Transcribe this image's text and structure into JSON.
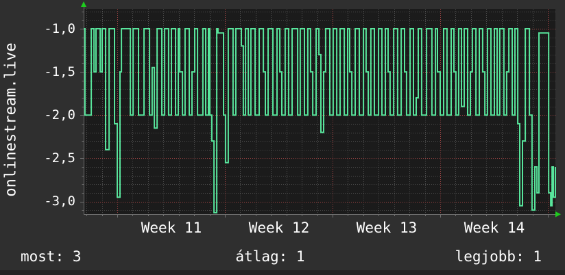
{
  "colors": {
    "background": "#2f2f2f",
    "plot_background": "#1b1b1b",
    "text": "#ffffff",
    "axis": "#707070",
    "arrow_green": "#1ecc1e",
    "line_green": "#58e59c",
    "grid_minor": "#4e4e4e",
    "grid_major_red": "#a34545",
    "footer_strip": "#242424"
  },
  "legend": {
    "current": "most: 3",
    "average": "átlag: 1",
    "best": "legjobb: 1"
  },
  "chart_data": {
    "type": "line",
    "style": "step",
    "title": "onlinestream.live",
    "ylabel": "onlinestream.live",
    "xlabel": "",
    "legend_position": "bottom",
    "grid": {
      "on": true,
      "minor_color": "#4e4e4e",
      "major_color": "#a34545"
    },
    "x_axis": {
      "unit": "days (weekly major grid)",
      "tick_labels": [
        "Week 11",
        "Week 12",
        "Week 13",
        "Week 14"
      ],
      "tick_label_positions_days": [
        3.5,
        10.5,
        17.5,
        24.5
      ],
      "major_gridlines_days": [
        0,
        7,
        14,
        21,
        28
      ],
      "minor_gridline_step_days": 1,
      "range_days": [
        -2.19,
        28.5
      ]
    },
    "y_axis": {
      "tick_labels": [
        "-1,0",
        "-1,5",
        "-2,0",
        "-2,5",
        "-3,0"
      ],
      "tick_values": [
        -1,
        -1.5,
        -2,
        -2.5,
        -3
      ],
      "major_step": 0.5,
      "minor_step": 0.1,
      "range": [
        -3.15,
        -0.77
      ]
    },
    "series": [
      {
        "name": "onlinestream.live",
        "color": "#58e59c",
        "points": [
          [
            -2.18,
            -1
          ],
          [
            -2.1,
            -2
          ],
          [
            -1.69,
            -1
          ],
          [
            -1.51,
            -1.5
          ],
          [
            -1.38,
            -1
          ],
          [
            -1.11,
            -1.5
          ],
          [
            -0.98,
            -1
          ],
          [
            -0.76,
            -2.4
          ],
          [
            -0.53,
            -1
          ],
          [
            -0.18,
            -2.1
          ],
          [
            0.0,
            -2.95
          ],
          [
            0.18,
            -1.5
          ],
          [
            0.27,
            -1
          ],
          [
            0.85,
            -2
          ],
          [
            1.03,
            -1
          ],
          [
            1.38,
            -2
          ],
          [
            1.74,
            -1
          ],
          [
            2.1,
            -2
          ],
          [
            2.27,
            -1.45
          ],
          [
            2.41,
            -2.15
          ],
          [
            2.59,
            -1
          ],
          [
            2.9,
            -2
          ],
          [
            3.08,
            -1
          ],
          [
            3.34,
            -2
          ],
          [
            3.52,
            -1
          ],
          [
            3.79,
            -2
          ],
          [
            3.97,
            -1
          ],
          [
            4.06,
            -1.5
          ],
          [
            4.24,
            -2
          ],
          [
            4.41,
            -1
          ],
          [
            4.68,
            -2
          ],
          [
            4.86,
            -1.5
          ],
          [
            5.04,
            -1
          ],
          [
            5.22,
            -2
          ],
          [
            5.57,
            -1
          ],
          [
            5.75,
            -2
          ],
          [
            5.93,
            -1
          ],
          [
            6.02,
            -2
          ],
          [
            6.15,
            -2.3
          ],
          [
            6.29,
            -3.13
          ],
          [
            6.47,
            -1
          ],
          [
            6.55,
            -1.05
          ],
          [
            6.91,
            -2
          ],
          [
            7.04,
            -2.55
          ],
          [
            7.22,
            -1
          ],
          [
            7.53,
            -2
          ],
          [
            7.71,
            -1
          ],
          [
            8.07,
            -1.2
          ],
          [
            8.2,
            -2
          ],
          [
            8.34,
            -1
          ],
          [
            8.52,
            -2
          ],
          [
            8.69,
            -1
          ],
          [
            8.96,
            -2
          ],
          [
            9.23,
            -1
          ],
          [
            9.5,
            -1.5
          ],
          [
            9.63,
            -2
          ],
          [
            9.81,
            -1
          ],
          [
            10.12,
            -2
          ],
          [
            10.39,
            -1
          ],
          [
            10.57,
            -1.5
          ],
          [
            10.7,
            -2
          ],
          [
            10.92,
            -1
          ],
          [
            11.14,
            -2
          ],
          [
            11.37,
            -1
          ],
          [
            11.73,
            -2
          ],
          [
            11.9,
            -1
          ],
          [
            12.17,
            -2
          ],
          [
            12.39,
            -1
          ],
          [
            12.57,
            -1.5
          ],
          [
            12.71,
            -2
          ],
          [
            12.93,
            -1
          ],
          [
            13.11,
            -1.3
          ],
          [
            13.24,
            -2.2
          ],
          [
            13.42,
            -1.5
          ],
          [
            13.55,
            -1
          ],
          [
            13.82,
            -2
          ],
          [
            14.04,
            -1
          ],
          [
            14.27,
            -2
          ],
          [
            14.49,
            -1
          ],
          [
            14.76,
            -2
          ],
          [
            14.98,
            -1
          ],
          [
            15.11,
            -1.5
          ],
          [
            15.25,
            -2
          ],
          [
            15.47,
            -1
          ],
          [
            15.74,
            -2
          ],
          [
            16.01,
            -1
          ],
          [
            16.18,
            -1.5
          ],
          [
            16.32,
            -2
          ],
          [
            16.49,
            -1
          ],
          [
            16.72,
            -2
          ],
          [
            16.99,
            -1
          ],
          [
            17.21,
            -2
          ],
          [
            17.43,
            -1
          ],
          [
            17.61,
            -1.5
          ],
          [
            17.74,
            -2
          ],
          [
            17.97,
            -1
          ],
          [
            18.23,
            -2
          ],
          [
            18.46,
            -1
          ],
          [
            18.68,
            -1.5
          ],
          [
            18.81,
            -2
          ],
          [
            19.04,
            -1
          ],
          [
            19.26,
            -2
          ],
          [
            19.44,
            -1.8
          ],
          [
            19.57,
            -1
          ],
          [
            19.79,
            -2
          ],
          [
            20.11,
            -1
          ],
          [
            20.46,
            -2
          ],
          [
            20.69,
            -1
          ],
          [
            20.82,
            -1.5
          ],
          [
            21.0,
            -2
          ],
          [
            21.22,
            -1
          ],
          [
            21.44,
            -2
          ],
          [
            21.71,
            -1
          ],
          [
            21.89,
            -1.5
          ],
          [
            22.02,
            -2
          ],
          [
            22.2,
            -1
          ],
          [
            22.38,
            -1.9
          ],
          [
            22.56,
            -1
          ],
          [
            22.78,
            -2
          ],
          [
            22.96,
            -1.5
          ],
          [
            23.09,
            -1
          ],
          [
            23.32,
            -2
          ],
          [
            23.54,
            -1
          ],
          [
            23.76,
            -1.5
          ],
          [
            23.9,
            -2
          ],
          [
            24.07,
            -1
          ],
          [
            24.3,
            -2
          ],
          [
            24.52,
            -1
          ],
          [
            24.7,
            -2
          ],
          [
            24.87,
            -1
          ],
          [
            25.14,
            -2
          ],
          [
            25.32,
            -1.5
          ],
          [
            25.46,
            -1
          ],
          [
            25.68,
            -2
          ],
          [
            25.86,
            -1
          ],
          [
            26.04,
            -2.1
          ],
          [
            26.17,
            -3.05
          ],
          [
            26.35,
            -2.3
          ],
          [
            26.53,
            -1
          ],
          [
            26.8,
            -2
          ],
          [
            26.97,
            -3.1
          ],
          [
            27.15,
            -2.6
          ],
          [
            27.29,
            -2.9
          ],
          [
            27.42,
            -1.05
          ],
          [
            28.05,
            -2.9
          ],
          [
            28.18,
            -3.05
          ],
          [
            28.27,
            -2.6
          ],
          [
            28.36,
            -2.95
          ],
          [
            28.49,
            -2.6
          ]
        ]
      }
    ]
  }
}
